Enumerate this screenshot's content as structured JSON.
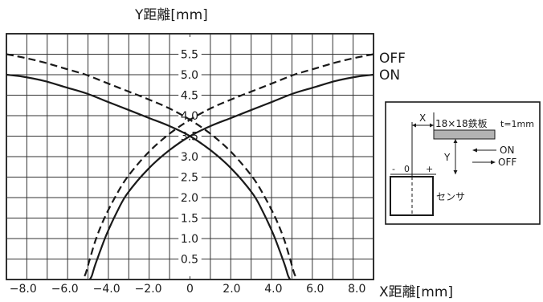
{
  "chart_data": {
    "type": "line",
    "ylabel": "Y距離[mm]",
    "xlabel": "X距離[mm]",
    "xlim": [
      -8.8,
      8.8
    ],
    "ylim": [
      0,
      6
    ],
    "x_tick_labels": [
      "−8.0",
      "−6.0",
      "−4.0",
      "−2.0",
      "0",
      "2.0",
      "4.0",
      "6.0",
      "8.0"
    ],
    "x_ticks": [
      -8,
      -6,
      -4,
      -2,
      0,
      2,
      4,
      6,
      8
    ],
    "y_tick_labels": [
      "0.5",
      "1.0",
      "1.5",
      "2.0",
      "2.5",
      "3.0",
      "3.5",
      "4.0",
      "4.5",
      "5.0",
      "5.5"
    ],
    "y_ticks": [
      0.5,
      1.0,
      1.5,
      2.0,
      2.5,
      3.0,
      3.5,
      4.0,
      4.5,
      5.0,
      5.5
    ],
    "grid": true,
    "series": [
      {
        "name": "OFF",
        "style": "dashed",
        "branches": [
          {
            "x": [
              -8.8,
              -8.0,
              -7.0,
              -6.0,
              -5.0,
              -4.0,
              -3.0,
              -2.0,
              -1.0,
              0.0,
              1.0,
              2.0,
              3.0,
              3.6,
              4.1,
              4.5,
              4.8,
              5.0,
              5.15
            ],
            "y": [
              5.5,
              5.42,
              5.3,
              5.15,
              5.0,
              4.8,
              4.6,
              4.4,
              4.18,
              3.9,
              3.55,
              3.1,
              2.5,
              2.0,
              1.5,
              1.0,
              0.5,
              0.15,
              0.0
            ]
          },
          {
            "x": [
              8.8,
              8.0,
              7.0,
              6.0,
              5.0,
              4.0,
              3.0,
              2.0,
              1.0,
              0.0,
              -1.0,
              -2.0,
              -3.0,
              -3.6,
              -4.1,
              -4.5,
              -4.8,
              -5.0,
              -5.15
            ],
            "y": [
              5.5,
              5.42,
              5.3,
              5.15,
              5.0,
              4.8,
              4.6,
              4.4,
              4.18,
              3.9,
              3.55,
              3.1,
              2.5,
              2.0,
              1.5,
              1.0,
              0.5,
              0.15,
              0.0
            ]
          }
        ]
      },
      {
        "name": "ON",
        "style": "solid",
        "branches": [
          {
            "x": [
              -8.8,
              -8.0,
              -7.0,
              -6.0,
              -5.0,
              -4.0,
              -3.0,
              -2.0,
              -1.0,
              0.0,
              1.0,
              2.0,
              3.0,
              3.5,
              4.0,
              4.3,
              4.55,
              4.7,
              4.8
            ],
            "y": [
              5.0,
              4.95,
              4.85,
              4.7,
              4.55,
              4.35,
              4.15,
              3.95,
              3.75,
              3.5,
              3.15,
              2.7,
              2.1,
              1.65,
              1.1,
              0.7,
              0.35,
              0.1,
              0.0
            ]
          },
          {
            "x": [
              8.8,
              8.0,
              7.0,
              6.0,
              5.0,
              4.0,
              3.0,
              2.0,
              1.0,
              0.0,
              -1.0,
              -2.0,
              -3.0,
              -3.5,
              -4.0,
              -4.3,
              -4.55,
              -4.7,
              -4.8
            ],
            "y": [
              5.0,
              4.95,
              4.85,
              4.7,
              4.55,
              4.35,
              4.15,
              3.95,
              3.75,
              3.5,
              3.15,
              2.7,
              2.1,
              1.65,
              1.1,
              0.7,
              0.35,
              0.1,
              0.0
            ]
          }
        ]
      }
    ],
    "inset": {
      "x_label": "X",
      "y_label": "Y",
      "plate_label": "18×18鉄板",
      "plate_thickness": "t=1mm",
      "on_label": "ON",
      "off_label": "OFF",
      "minus": "-",
      "zero": "0",
      "plus": "+",
      "sensor_label": "センサ"
    }
  }
}
